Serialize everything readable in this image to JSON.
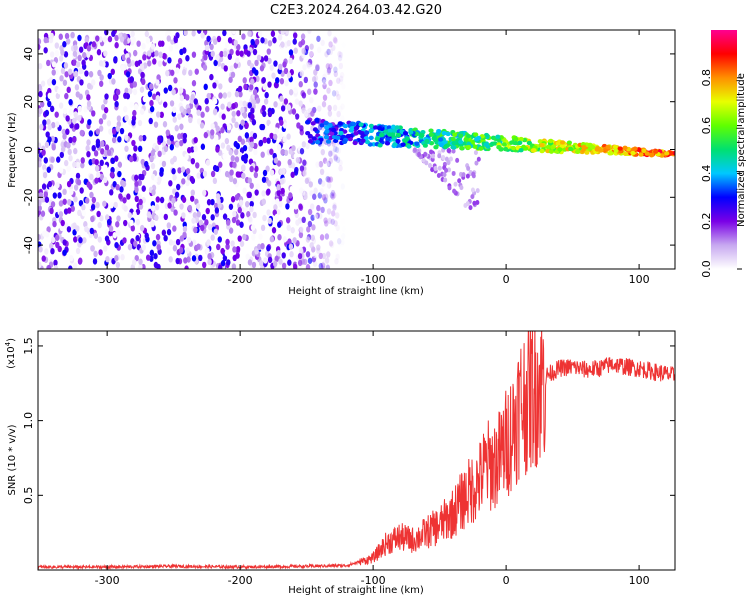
{
  "chart_data": [
    {
      "type": "heatmap",
      "title": "C2E3.2024.264.03.42.G20",
      "xlabel": "Height of straight line (km)",
      "ylabel": "Frequency (Hz)",
      "xlim": [
        -352,
        127
      ],
      "ylim": [
        -50,
        50
      ],
      "xticks": [
        -300,
        -200,
        -100,
        0,
        100
      ],
      "yticks": [
        -40,
        -20,
        0,
        20,
        40
      ],
      "colorbar": {
        "label": "Normalized spectral amplitude",
        "range": [
          0,
          1
        ],
        "ticks": [
          0.0,
          0.2,
          0.4,
          0.6,
          0.8
        ],
        "colors": [
          "#ffffff",
          "#c7a8f0",
          "#7a00e6",
          "#0000ff",
          "#00c8ff",
          "#00e070",
          "#60ff00",
          "#e8ff00",
          "#ff9000",
          "#ff0000",
          "#ff0090"
        ]
      },
      "regions": [
        {
          "name": "noise field",
          "x_range": [
            -352,
            -122
          ],
          "f_range": [
            -50,
            50
          ],
          "amplitude_range": [
            0.0,
            0.3
          ]
        },
        {
          "name": "signal band",
          "x_range": [
            -150,
            127
          ],
          "f_range": [
            -5,
            12
          ],
          "amplitude_range": [
            0.2,
            1.0
          ],
          "center_freq_start": 8,
          "center_freq_end": -2
        },
        {
          "name": "dispersed tail",
          "x_range": [
            -70,
            -20
          ],
          "f_range": [
            -32,
            0
          ],
          "amplitude_range": [
            0.0,
            0.2
          ]
        }
      ]
    },
    {
      "type": "line",
      "xlabel": "Height of straight line (km)",
      "ylabel": "SNR (10 * v/v)",
      "yscale_label": "(x10",
      "yscale_exp": "4",
      "xlim": [
        -352,
        127
      ],
      "ylim": [
        0,
        1.6
      ],
      "xticks": [
        -300,
        -200,
        -100,
        0,
        100
      ],
      "yticks": [
        0.5,
        1.0,
        1.5
      ],
      "series": [
        {
          "name": "SNR",
          "color": "#ee3333",
          "x": [
            -352,
            -300,
            -250,
            -200,
            -150,
            -120,
            -100,
            -90,
            -80,
            -70,
            -60,
            -50,
            -40,
            -30,
            -20,
            -15,
            -10,
            -5,
            0,
            5,
            10,
            20,
            30,
            40,
            50,
            60,
            70,
            80,
            90,
            100,
            110,
            127
          ],
          "y": [
            0.02,
            0.02,
            0.025,
            0.02,
            0.025,
            0.03,
            0.08,
            0.18,
            0.22,
            0.2,
            0.25,
            0.3,
            0.38,
            0.5,
            0.6,
            0.7,
            0.7,
            0.75,
            0.85,
            0.95,
            1.1,
            1.2,
            1.3,
            1.35,
            1.36,
            1.34,
            1.35,
            1.38,
            1.36,
            1.35,
            1.33,
            1.3
          ]
        }
      ]
    }
  ]
}
